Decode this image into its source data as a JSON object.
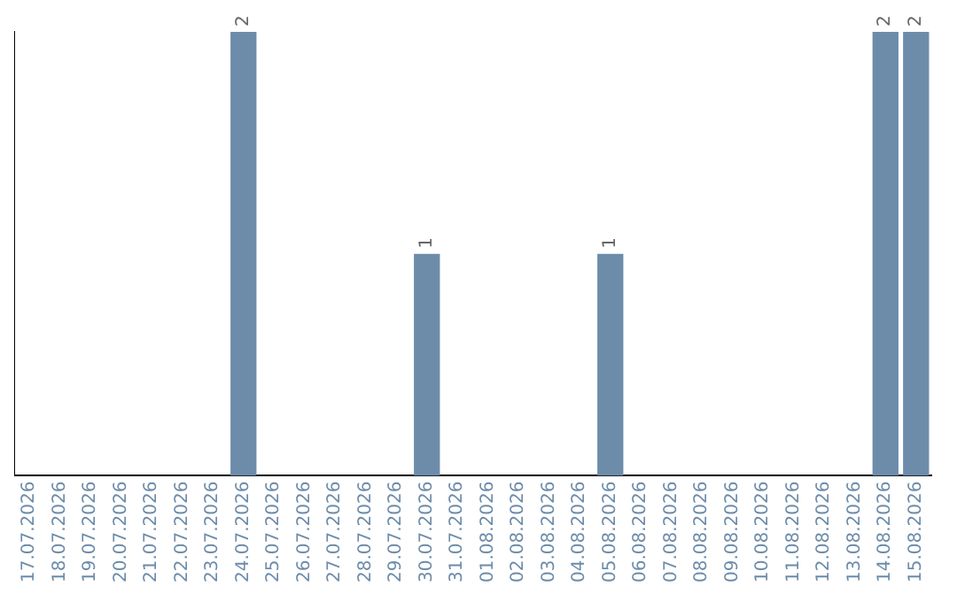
{
  "chart_data": {
    "type": "bar",
    "categories": [
      "17.07.2026",
      "18.07.2026",
      "19.07.2026",
      "20.07.2026",
      "21.07.2026",
      "22.07.2026",
      "23.07.2026",
      "24.07.2026",
      "25.07.2026",
      "26.07.2026",
      "27.07.2026",
      "28.07.2026",
      "29.07.2026",
      "30.07.2026",
      "31.07.2026",
      "01.08.2026",
      "02.08.2026",
      "03.08.2026",
      "04.08.2026",
      "05.08.2026",
      "06.08.2026",
      "07.08.2026",
      "08.08.2026",
      "09.08.2026",
      "10.08.2026",
      "11.08.2026",
      "12.08.2026",
      "13.08.2026",
      "14.08.2026",
      "15.08.2026"
    ],
    "values": [
      0,
      0,
      0,
      0,
      0,
      0,
      0,
      2,
      0,
      0,
      0,
      0,
      0,
      1,
      0,
      0,
      0,
      0,
      0,
      1,
      0,
      0,
      0,
      0,
      0,
      0,
      0,
      0,
      2,
      2
    ],
    "value_labels": [
      null,
      null,
      null,
      null,
      null,
      null,
      null,
      "2",
      null,
      null,
      null,
      null,
      null,
      "1",
      null,
      null,
      null,
      null,
      null,
      "1",
      null,
      null,
      null,
      null,
      null,
      null,
      null,
      null,
      "2",
      "2"
    ],
    "color": "#6d8caa",
    "grid": false,
    "legend": false,
    "tick_labels": "x"
  }
}
